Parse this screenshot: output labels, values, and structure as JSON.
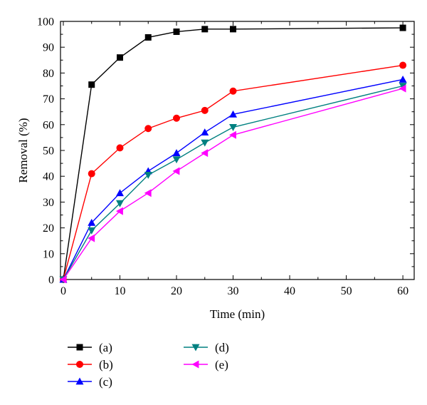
{
  "chart_data": {
    "type": "line",
    "xlabel": "Time (min)",
    "ylabel": "Removal (%)",
    "xlim": [
      -0.5,
      62
    ],
    "ylim": [
      0,
      100
    ],
    "x_ticks": [
      0,
      10,
      20,
      30,
      40,
      50,
      60
    ],
    "y_ticks": [
      0,
      10,
      20,
      30,
      40,
      50,
      60,
      70,
      80,
      90,
      100
    ],
    "legend_position": "bottom",
    "series": [
      {
        "name": "(a)",
        "color": "#000000",
        "marker": "square",
        "x": [
          0,
          5,
          10,
          15,
          20,
          25,
          30,
          60
        ],
        "y": [
          0,
          75.5,
          86,
          93.8,
          96,
          97,
          97,
          97.5
        ]
      },
      {
        "name": "(b)",
        "color": "#ff0000",
        "marker": "circle",
        "x": [
          0,
          5,
          10,
          15,
          20,
          25,
          30,
          60
        ],
        "y": [
          0,
          41,
          51,
          58.5,
          62.5,
          65.5,
          73,
          83
        ]
      },
      {
        "name": "(c)",
        "color": "#0000ff",
        "marker": "triangle-up",
        "x": [
          0,
          5,
          10,
          15,
          20,
          25,
          30,
          60
        ],
        "y": [
          0,
          22,
          33.5,
          42,
          49,
          57,
          64,
          77.5
        ]
      },
      {
        "name": "(d)",
        "color": "#008080",
        "marker": "triangle-down",
        "x": [
          0,
          5,
          10,
          15,
          20,
          25,
          30,
          60
        ],
        "y": [
          0,
          19,
          29.5,
          40.5,
          46.5,
          53,
          59,
          75
        ]
      },
      {
        "name": "(e)",
        "color": "#ff00ff",
        "marker": "triangle-left",
        "x": [
          0,
          5,
          10,
          15,
          20,
          25,
          30,
          60
        ],
        "y": [
          0,
          16,
          26.5,
          33.5,
          42,
          49,
          56,
          74
        ]
      }
    ]
  }
}
